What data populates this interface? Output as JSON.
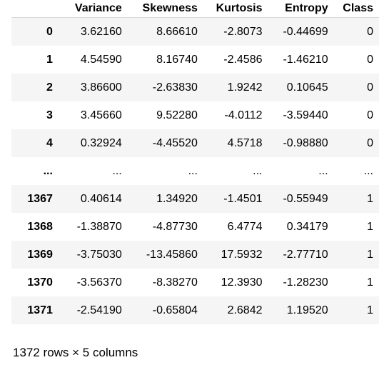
{
  "table": {
    "columns": [
      "",
      "Variance",
      "Skewness",
      "Kurtosis",
      "Entropy",
      "Class"
    ],
    "rows": [
      {
        "index": "0",
        "cells": [
          "3.62160",
          "8.66610",
          "-2.8073",
          "-0.44699",
          "0"
        ]
      },
      {
        "index": "1",
        "cells": [
          "4.54590",
          "8.16740",
          "-2.4586",
          "-1.46210",
          "0"
        ]
      },
      {
        "index": "2",
        "cells": [
          "3.86600",
          "-2.63830",
          "1.9242",
          "0.10645",
          "0"
        ]
      },
      {
        "index": "3",
        "cells": [
          "3.45660",
          "9.52280",
          "-4.0112",
          "-3.59440",
          "0"
        ]
      },
      {
        "index": "4",
        "cells": [
          "0.32924",
          "-4.45520",
          "4.5718",
          "-0.98880",
          "0"
        ]
      },
      {
        "index": "...",
        "cells": [
          "...",
          "...",
          "...",
          "...",
          "..."
        ]
      },
      {
        "index": "1367",
        "cells": [
          "0.40614",
          "1.34920",
          "-1.4501",
          "-0.55949",
          "1"
        ]
      },
      {
        "index": "1368",
        "cells": [
          "-1.38870",
          "-4.87730",
          "6.4774",
          "0.34179",
          "1"
        ]
      },
      {
        "index": "1369",
        "cells": [
          "-3.75030",
          "-13.45860",
          "17.5932",
          "-2.77710",
          "1"
        ]
      },
      {
        "index": "1370",
        "cells": [
          "-3.56370",
          "-8.38270",
          "12.3930",
          "-1.28230",
          "1"
        ]
      },
      {
        "index": "1371",
        "cells": [
          "-2.54190",
          "-0.65804",
          "2.6842",
          "1.19520",
          "1"
        ]
      }
    ]
  },
  "summary": "1372 rows × 5 columns"
}
